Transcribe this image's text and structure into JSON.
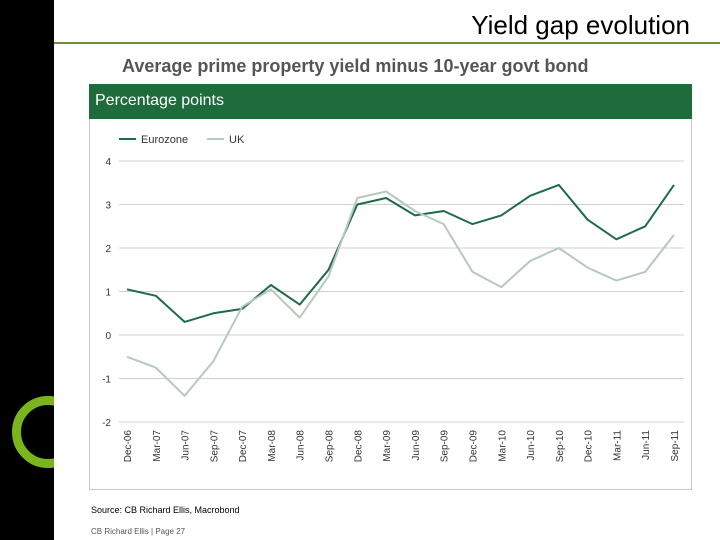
{
  "page": {
    "title": "Yield gap evolution",
    "subtitle": "Average prime property yield minus 10-year govt bond",
    "panel_header": "Percentage points",
    "source": "Source: CB Richard Ellis, Macrobond",
    "footer": "CB Richard Ellis | Page 27"
  },
  "colors": {
    "sidebar": "#000000",
    "accent_green": "#7ab51d",
    "header_green": "#1e6b3c",
    "eurozone": "#1e6b4a",
    "uk": "#b5c9bd",
    "grid": "#d0d0d0"
  },
  "chart_data": {
    "type": "line",
    "title": "Percentage points",
    "xlabel": "",
    "ylabel": "",
    "ylim": [
      -2,
      4
    ],
    "yticks": [
      4,
      3,
      2,
      1,
      0,
      -1,
      -2
    ],
    "ytick_labels": [
      "4",
      "3",
      "2",
      "1",
      "0",
      "-1",
      "-2"
    ],
    "grid": true,
    "legend_position": "top-left",
    "categories": [
      "Dec-06",
      "Mar-07",
      "Jun-07",
      "Sep-07",
      "Dec-07",
      "Mar-08",
      "Jun-08",
      "Sep-08",
      "Dec-08",
      "Mar-09",
      "Jun-09",
      "Sep-09",
      "Dec-09",
      "Mar-10",
      "Jun-10",
      "Sep-10",
      "Dec-10",
      "Mar-11",
      "Jun-11",
      "Sep-11"
    ],
    "series": [
      {
        "name": "Eurozone",
        "color": "#1e6b4a",
        "values": [
          1.05,
          0.9,
          0.3,
          0.5,
          0.6,
          1.15,
          0.7,
          1.5,
          3.0,
          3.15,
          2.75,
          2.85,
          2.55,
          2.75,
          3.2,
          3.45,
          2.65,
          2.2,
          2.5,
          3.45
        ]
      },
      {
        "name": "UK",
        "color": "#b5c9bd",
        "values": [
          -0.5,
          -0.75,
          -1.4,
          -0.6,
          0.65,
          1.05,
          0.4,
          1.35,
          3.15,
          3.3,
          2.85,
          2.55,
          1.45,
          1.1,
          1.7,
          2.0,
          1.55,
          1.25,
          1.45,
          2.3
        ]
      }
    ]
  }
}
